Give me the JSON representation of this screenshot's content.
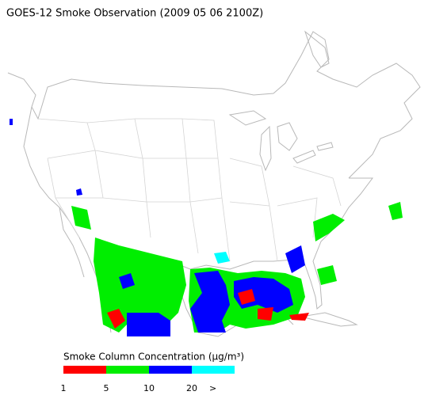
{
  "title": "GOES-12 Smoke Observation (2009 05 06  2100Z)",
  "legend": {
    "title": "Smoke Column Concentration (μg/m³)",
    "colors": [
      "#ff0000",
      "#00ee00",
      "#0000ff",
      "#00ffff"
    ],
    "labels": [
      "1",
      "5",
      "10",
      "20",
      ">"
    ]
  }
}
